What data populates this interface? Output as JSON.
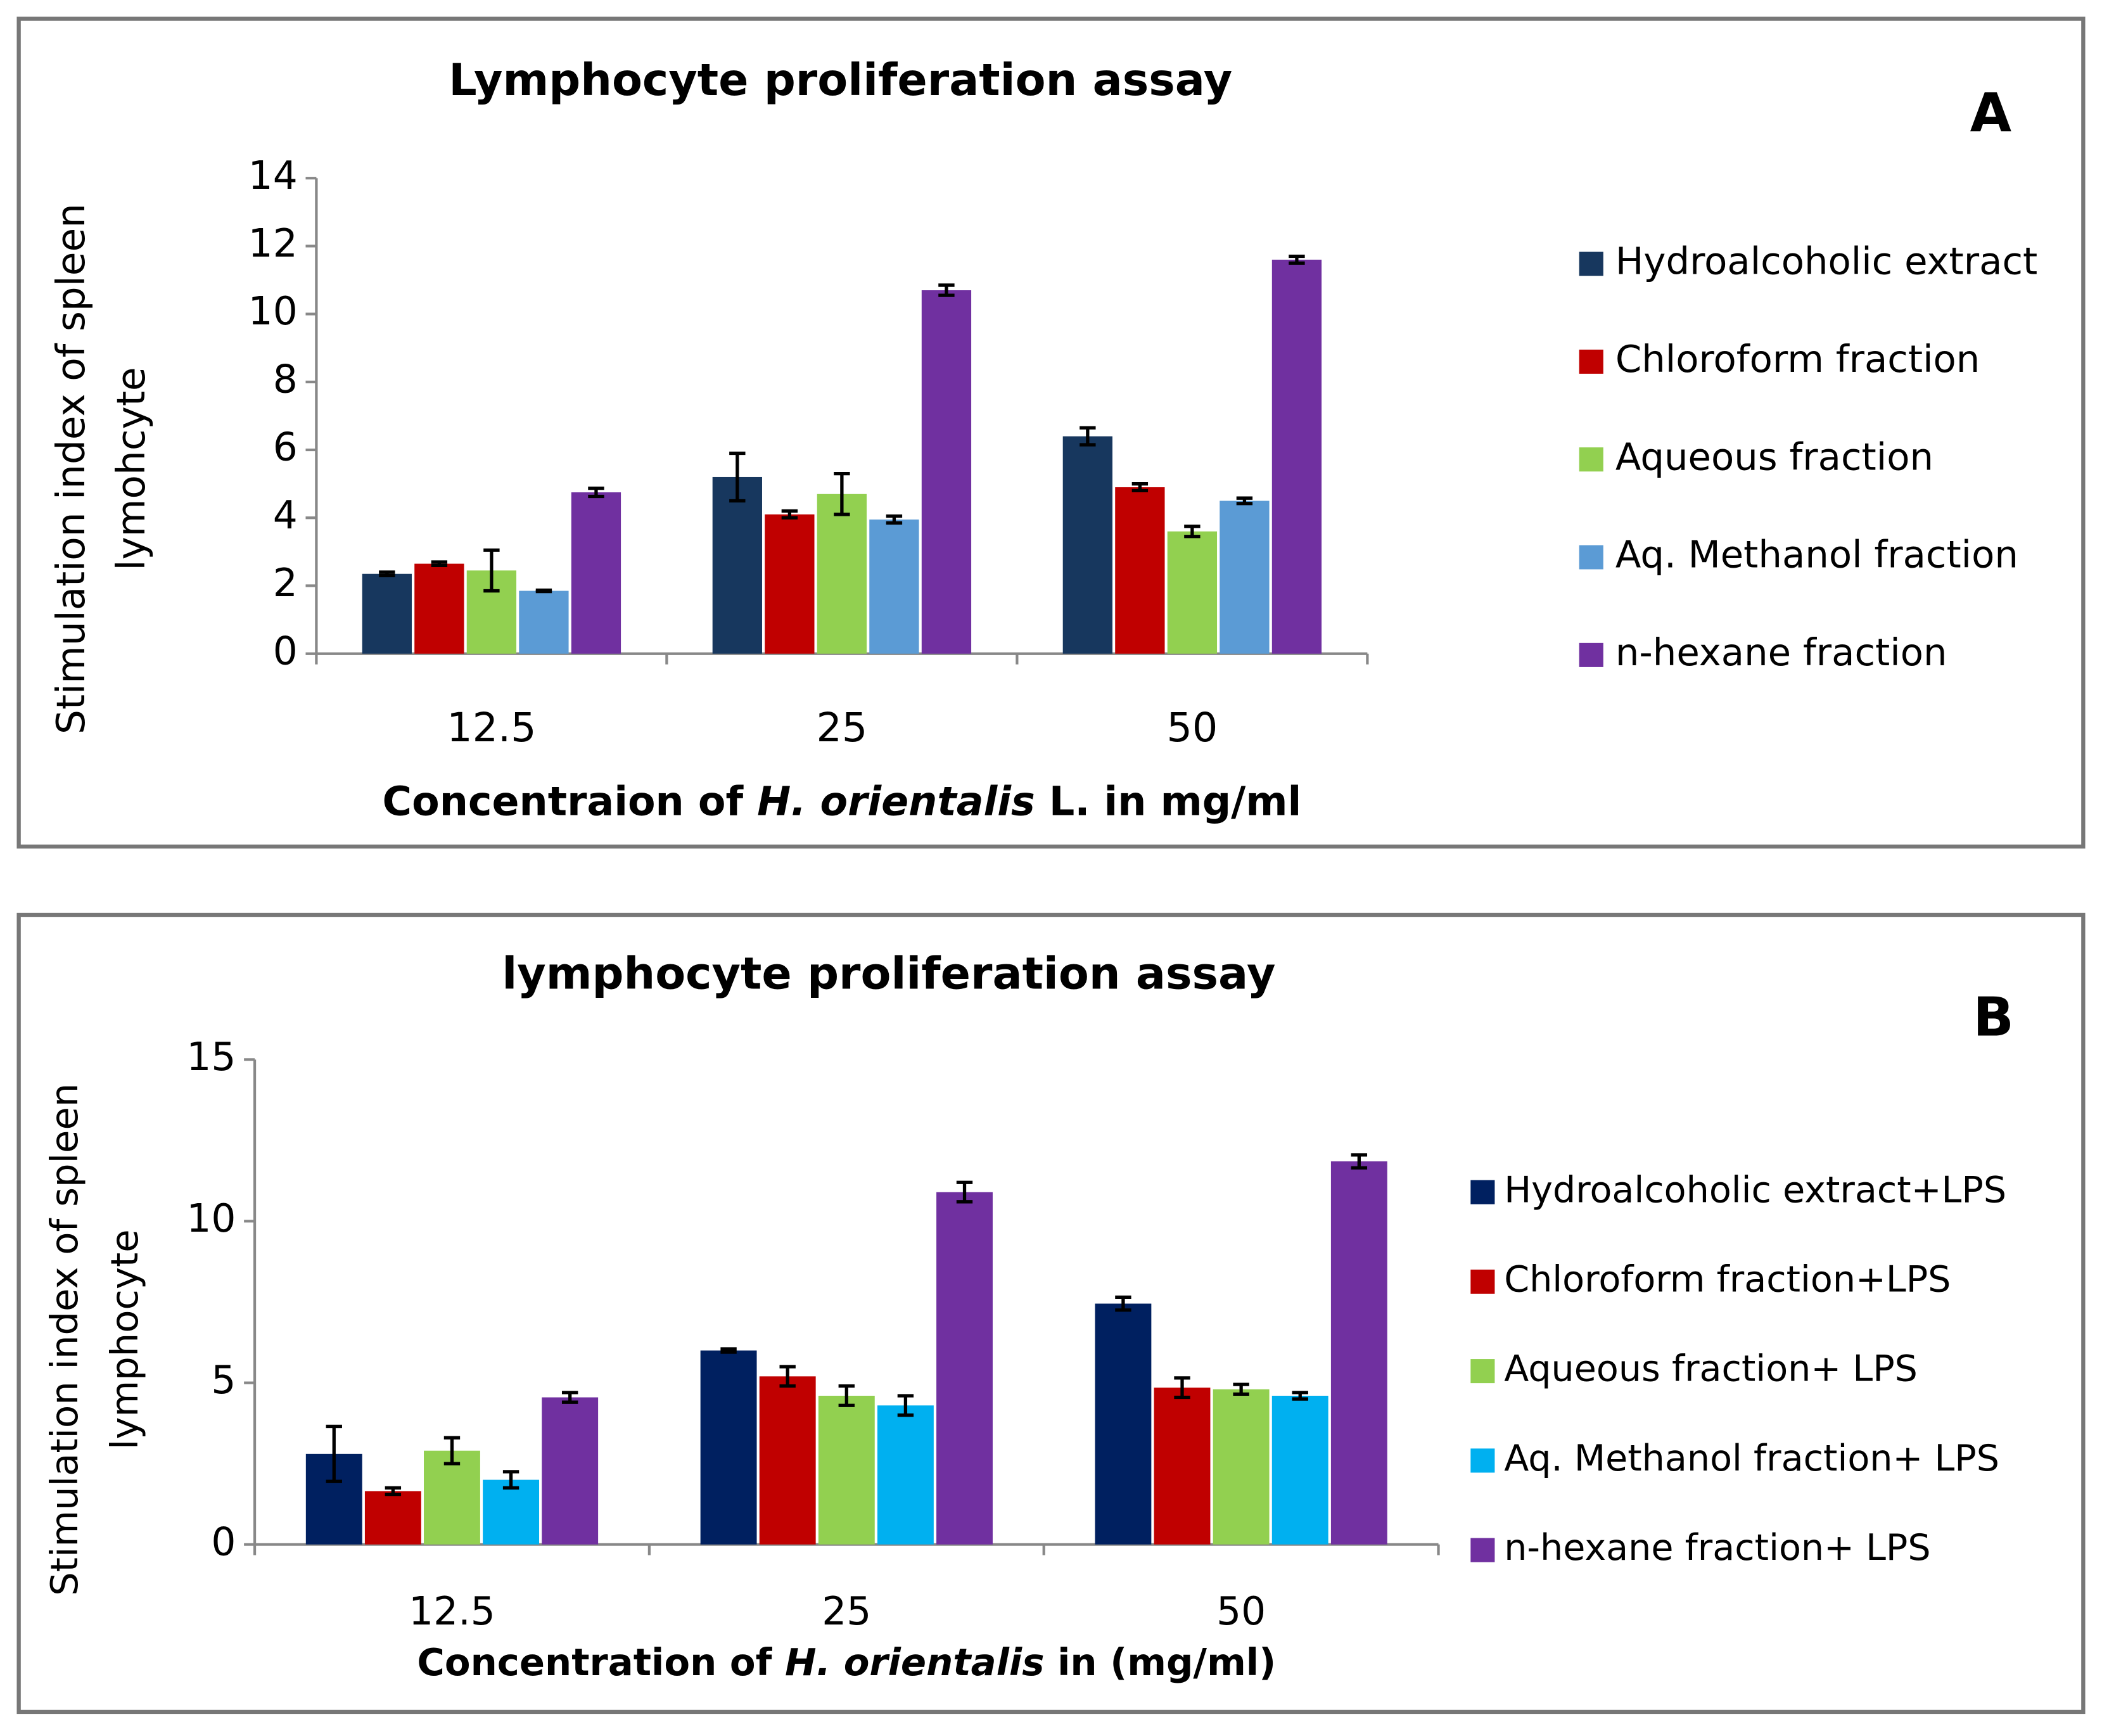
{
  "chart_data": [
    {
      "type": "bar",
      "title": "Lymphocyte proliferation assay",
      "panel_label": "A",
      "y_label": [
        "Stimulation index of spleen",
        "lymohcyte"
      ],
      "x_label": [
        {
          "text": "Concentraion of ",
          "italic": false
        },
        {
          "text": "H. orientalis",
          "italic": true
        },
        {
          "text": " L. in mg/ml",
          "italic": false
        }
      ],
      "categories": [
        "12.5",
        "25",
        "50"
      ],
      "ylim": [
        0,
        14
      ],
      "yticks": [
        0,
        2,
        4,
        6,
        8,
        10,
        12,
        14
      ],
      "series": [
        {
          "name": "Hydroalcoholic extract",
          "color": "#17375e",
          "values": [
            2.35,
            5.2,
            6.4
          ],
          "errors": [
            0.05,
            0.7,
            0.25
          ]
        },
        {
          "name": "Chloroform fraction",
          "color": "#c00000",
          "values": [
            2.65,
            4.1,
            4.9
          ],
          "errors": [
            0.05,
            0.1,
            0.1
          ]
        },
        {
          "name": "Aqueous fraction",
          "color": "#92d050",
          "values": [
            2.45,
            4.7,
            3.6
          ],
          "errors": [
            0.6,
            0.6,
            0.15
          ]
        },
        {
          "name": "Aq. Methanol fraction",
          "color": "#5b9bd5",
          "values": [
            1.85,
            3.95,
            4.5
          ],
          "errors": [
            0.02,
            0.1,
            0.08
          ]
        },
        {
          "name": "n-hexane fraction",
          "color": "#7030a0",
          "values": [
            4.75,
            10.7,
            11.6
          ],
          "errors": [
            0.12,
            0.15,
            0.1
          ]
        }
      ]
    },
    {
      "type": "bar",
      "title": "lymphocyte proliferation assay",
      "panel_label": "B",
      "y_label": [
        "Stimulation index of spleen",
        "lymphocyte"
      ],
      "x_label": [
        {
          "text": "Concentration of ",
          "italic": false
        },
        {
          "text": "H. orientalis",
          "italic": true
        },
        {
          "text": " in (mg/ml)",
          "italic": false
        }
      ],
      "categories": [
        "12.5",
        "25",
        "50"
      ],
      "ylim": [
        0,
        15
      ],
      "yticks": [
        0,
        5,
        10,
        15
      ],
      "series": [
        {
          "name": "Hydroalcoholic extract+LPS",
          "color": "#002060",
          "values": [
            2.8,
            6.0,
            7.45
          ],
          "errors": [
            0.85,
            0.05,
            0.2
          ]
        },
        {
          "name": "Chloroform fraction+LPS",
          "color": "#c00000",
          "values": [
            1.65,
            5.2,
            4.85
          ],
          "errors": [
            0.1,
            0.3,
            0.3
          ]
        },
        {
          "name": "Aqueous fraction+ LPS",
          "color": "#92d050",
          "values": [
            2.9,
            4.6,
            4.8
          ],
          "errors": [
            0.4,
            0.3,
            0.15
          ]
        },
        {
          "name": "Aq. Methanol fraction+ LPS",
          "color": "#00b0f0",
          "values": [
            2.0,
            4.3,
            4.6
          ],
          "errors": [
            0.25,
            0.3,
            0.1
          ]
        },
        {
          "name": "n-hexane fraction+ LPS",
          "color": "#7030a0",
          "values": [
            4.55,
            10.9,
            11.85
          ],
          "errors": [
            0.15,
            0.3,
            0.2
          ]
        }
      ]
    }
  ]
}
